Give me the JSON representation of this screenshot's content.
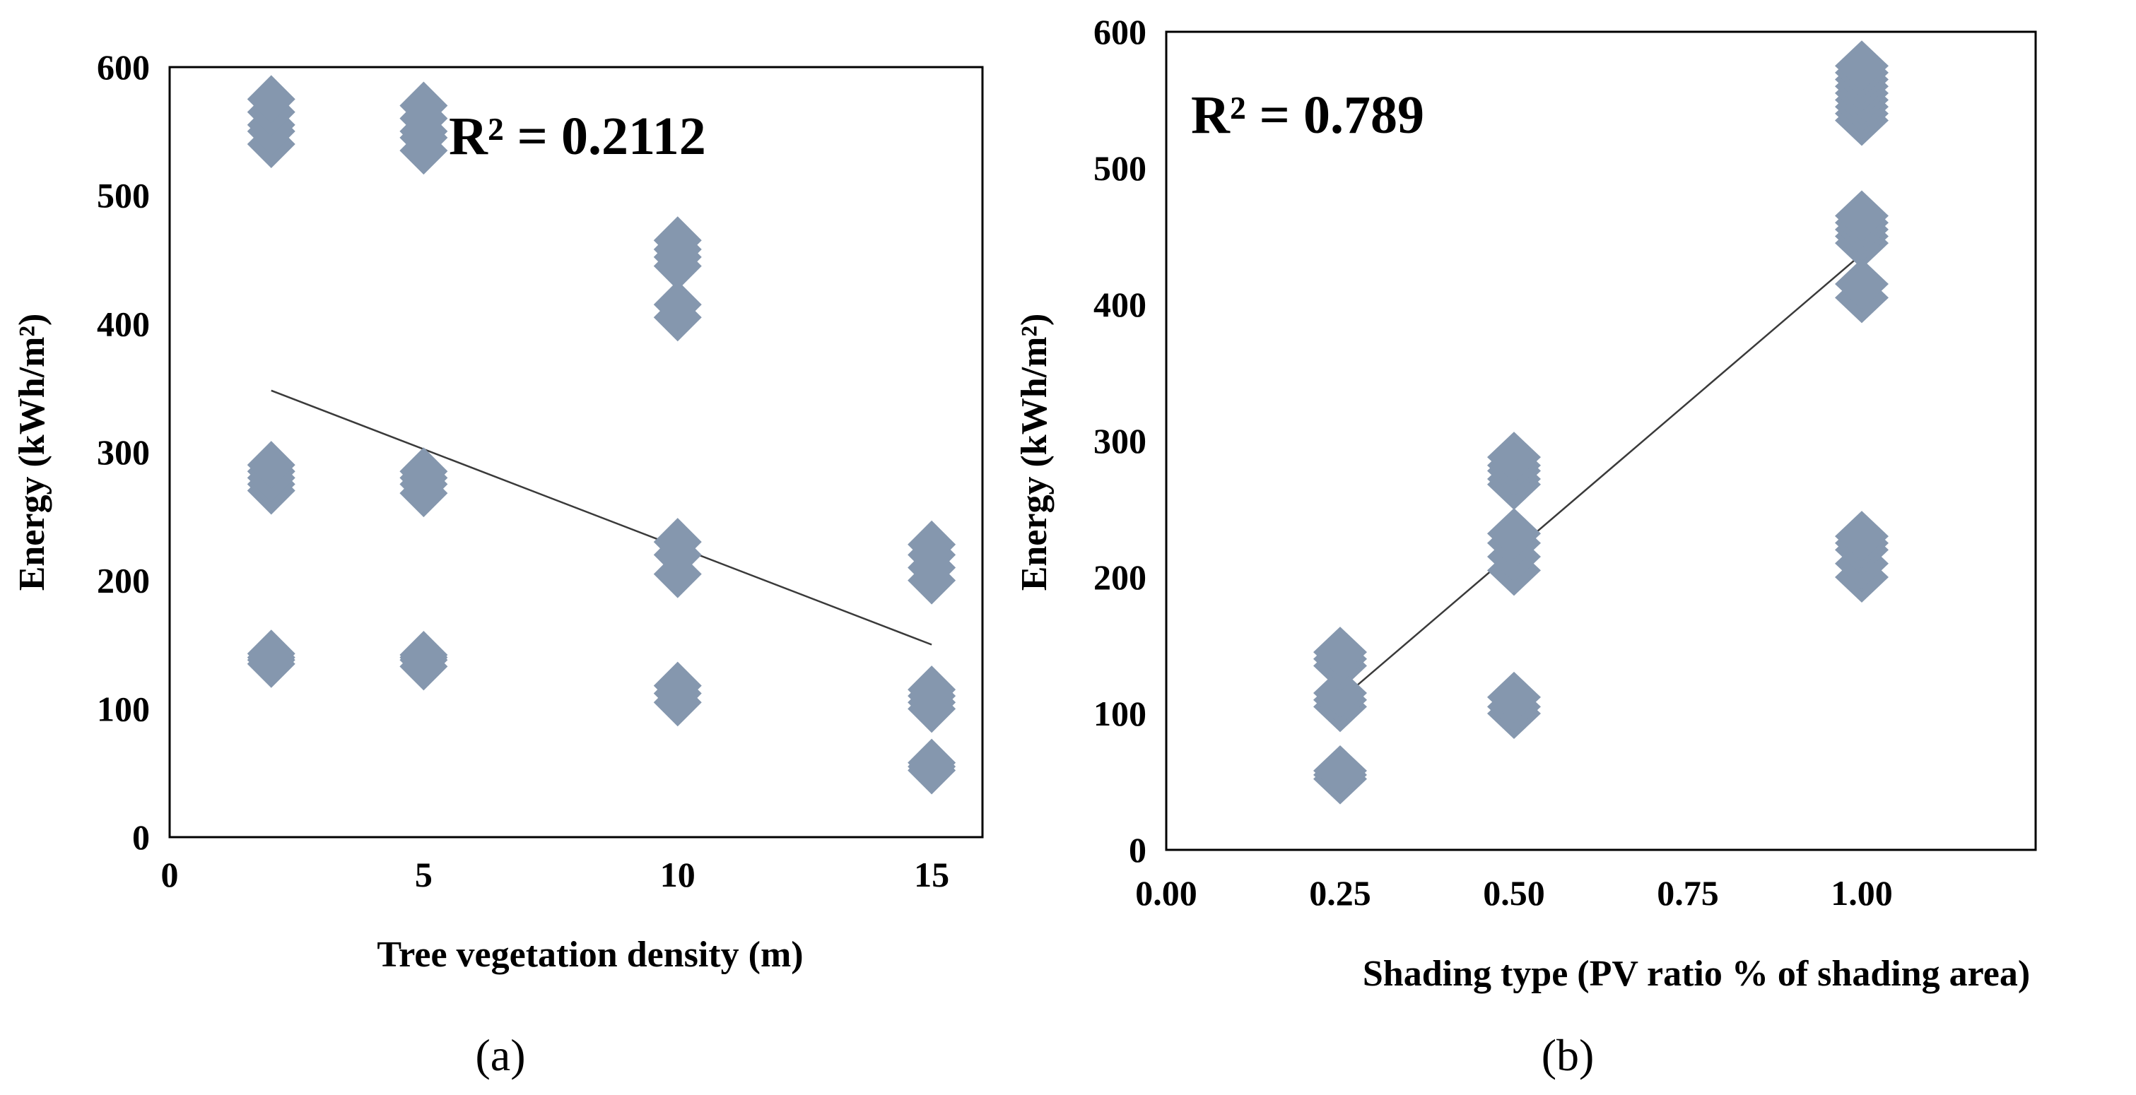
{
  "colors": {
    "marker": "#8597AE",
    "trendline": "#3A3A3A",
    "axis": "#000000"
  },
  "chart_data": [
    {
      "type": "scatter",
      "panel_label": "(a)",
      "xlabel": "Tree vegetation density (m)",
      "ylabel": "Energy (kWh/m²)",
      "xlim": [
        0,
        16
      ],
      "ylim": [
        0,
        600
      ],
      "xticks": [
        0,
        5,
        10,
        15
      ],
      "xtick_labels": [
        "0",
        "5",
        "10",
        "15"
      ],
      "yticks": [
        0,
        100,
        200,
        300,
        400,
        500,
        600
      ],
      "ytick_labels": [
        "0",
        "100",
        "200",
        "300",
        "400",
        "500",
        "600"
      ],
      "r2_label": "R² = 0.2112",
      "trendline": {
        "x": [
          2,
          15
        ],
        "y": [
          348,
          150
        ]
      },
      "points": {
        "x": [
          2,
          2,
          2,
          2,
          2,
          2,
          2,
          2,
          2,
          2,
          2,
          2,
          2,
          2,
          5,
          5,
          5,
          5,
          5,
          5,
          5,
          5,
          5,
          5,
          5,
          5,
          5,
          10,
          10,
          10,
          10,
          10,
          10,
          10,
          10,
          10,
          10,
          10,
          10,
          15,
          15,
          15,
          15,
          15,
          15,
          15,
          15,
          15,
          15,
          15
        ],
        "y": [
          540,
          550,
          555,
          565,
          575,
          270,
          275,
          280,
          285,
          290,
          135,
          140,
          138,
          143,
          535,
          545,
          550,
          560,
          570,
          268,
          275,
          280,
          285,
          133,
          138,
          140,
          142,
          405,
          415,
          445,
          452,
          458,
          465,
          205,
          220,
          230,
          105,
          112,
          118,
          200,
          210,
          220,
          228,
          100,
          105,
          110,
          115,
          52,
          55,
          58
        ]
      }
    },
    {
      "type": "scatter",
      "panel_label": "(b)",
      "xlabel": "Shading type (PV ratio % of shading area)",
      "ylabel": "Energy (kWh/m²)",
      "xlim": [
        0,
        1.25
      ],
      "ylim": [
        0,
        600
      ],
      "xticks": [
        0,
        0.25,
        0.5,
        0.75,
        1.0
      ],
      "xtick_labels": [
        "0.00",
        "0.25",
        "0.50",
        "0.75",
        "1.00"
      ],
      "yticks": [
        0,
        100,
        200,
        300,
        400,
        500,
        600
      ],
      "ytick_labels": [
        "0",
        "100",
        "200",
        "300",
        "400",
        "500",
        "600"
      ],
      "r2_label": "R² = 0.789",
      "trendline": {
        "x": [
          0.25,
          1.0
        ],
        "y": [
          110,
          437
        ]
      },
      "points": {
        "x": [
          0.25,
          0.25,
          0.25,
          0.25,
          0.25,
          0.25,
          0.25,
          0.25,
          0.25,
          0.5,
          0.5,
          0.5,
          0.5,
          0.5,
          0.5,
          0.5,
          0.5,
          0.5,
          0.5,
          0.5,
          0.5,
          1,
          1,
          1,
          1,
          1,
          1,
          1,
          1,
          1,
          1,
          1,
          1,
          1,
          1,
          1,
          1,
          1,
          1,
          1,
          1,
          1
        ],
        "y": [
          52,
          55,
          58,
          105,
          110,
          115,
          135,
          140,
          145,
          100,
          105,
          112,
          205,
          215,
          225,
          232,
          268,
          272,
          278,
          282,
          288,
          535,
          540,
          545,
          550,
          555,
          560,
          565,
          570,
          575,
          445,
          450,
          455,
          460,
          465,
          405,
          415,
          200,
          210,
          220,
          225,
          230
        ]
      }
    }
  ]
}
